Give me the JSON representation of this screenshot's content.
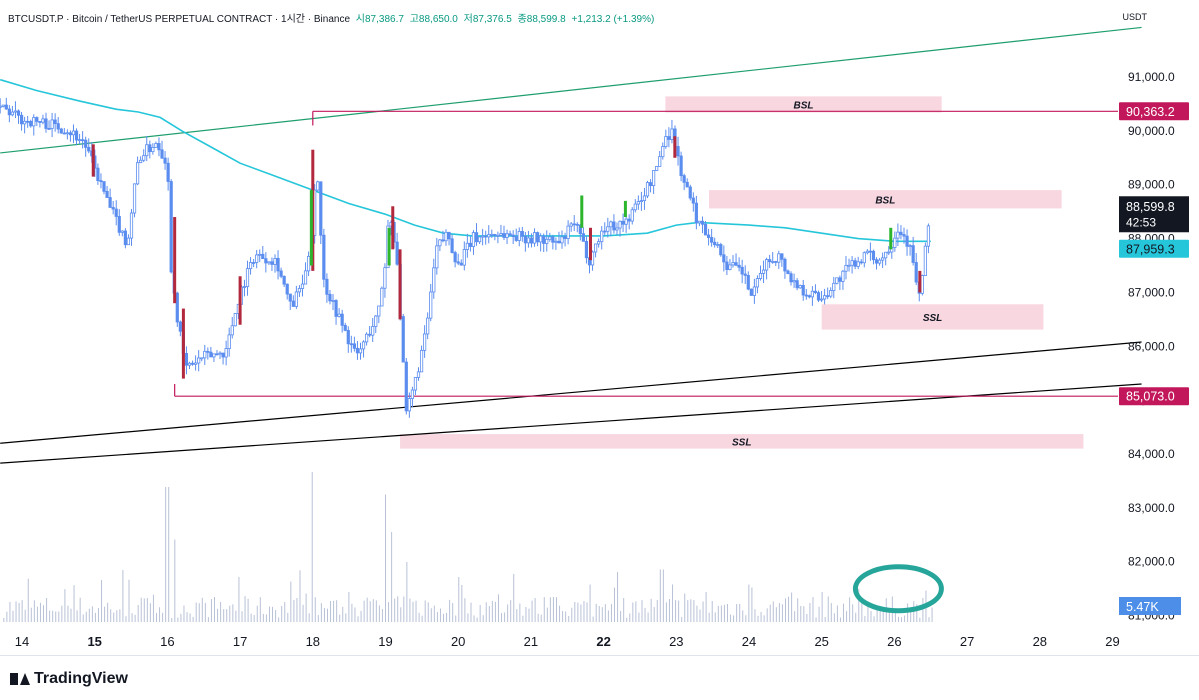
{
  "header": {
    "symbol": "BTCUSDT.P · Bitcoin / TetherUS PERPETUAL CONTRACT · 1시간 · Binance",
    "open": "시87,386.7",
    "high": "고88,650.0",
    "low": "저87,376.5",
    "close": "종88,599.8",
    "change": "+1,213.2 (+1.39%)"
  },
  "currency": "USDT",
  "brand": "TradingView",
  "colors": {
    "up": "#5b8def",
    "down": "#b2283c",
    "green": "#2db52d",
    "ma": "#26c6da",
    "trend_green": "#1e9e6e",
    "level": "#c2185b",
    "zone": "#f8d7e0",
    "volume": "#b8c1d6",
    "circle": "#26a69a"
  },
  "chart_data": {
    "type": "candlestick",
    "y_axis_ticks": [
      "91,000.0",
      "90,000.0",
      "89,000.0",
      "88,000.0",
      "87,000.0",
      "86,000.0",
      "85,000.0",
      "84,000.0",
      "83,000.0",
      "82,000.0"
    ],
    "ylim": [
      80900,
      91900
    ],
    "x_axis_ticks": [
      "14",
      "15",
      "16",
      "17",
      "18",
      "19",
      "20",
      "21",
      "22",
      "23",
      "24",
      "25",
      "26",
      "27",
      "28",
      "29"
    ],
    "bold_ticks": [
      "15",
      "22"
    ],
    "price_labels": {
      "level_high": "90,363.2",
      "current": "88,599.8",
      "countdown": "42:53",
      "ma": "87,959.3",
      "level_low": "85,073.0",
      "volume": "5.47K"
    },
    "zones": [
      {
        "label": "BSL",
        "day_start": 22.85,
        "day_end": 26.65,
        "top": 90640,
        "bottom": 90340
      },
      {
        "label": "BSL",
        "day_start": 23.45,
        "day_end": 28.3,
        "top": 88900,
        "bottom": 88560
      },
      {
        "label": "SSL",
        "day_start": 25.0,
        "day_end": 28.05,
        "top": 86780,
        "bottom": 86310
      },
      {
        "label": "SSL",
        "day_start": 19.2,
        "day_end": 28.6,
        "top": 84370,
        "bottom": 84100
      }
    ],
    "levels": [
      {
        "label": "90,363.2",
        "value": 90363.2,
        "day_start": 18.0
      },
      {
        "label": "85,073.0",
        "value": 85073.0,
        "day_start": 16.1
      }
    ],
    "trendlines": [
      {
        "color": "trend_green",
        "from": [
          13.7,
          89590
        ],
        "to": [
          29.4,
          91920
        ]
      },
      {
        "color": "black",
        "from": [
          13.7,
          84200
        ],
        "to": [
          29.4,
          86080
        ]
      },
      {
        "color": "black",
        "from": [
          13.7,
          83830
        ],
        "to": [
          29.4,
          85300
        ]
      }
    ],
    "price_path": [
      [
        13.7,
        90450
      ],
      [
        14.0,
        90200
      ],
      [
        14.3,
        90150
      ],
      [
        14.6,
        90050
      ],
      [
        14.85,
        89800
      ],
      [
        15.0,
        89300
      ],
      [
        15.2,
        88600
      ],
      [
        15.45,
        87900
      ],
      [
        15.6,
        89500
      ],
      [
        15.85,
        89800
      ],
      [
        16.0,
        89400
      ],
      [
        16.05,
        87500
      ],
      [
        16.15,
        86400
      ],
      [
        16.25,
        85600
      ],
      [
        16.5,
        85800
      ],
      [
        16.8,
        85900
      ],
      [
        17.0,
        87000
      ],
      [
        17.2,
        87700
      ],
      [
        17.5,
        87600
      ],
      [
        17.7,
        86700
      ],
      [
        17.9,
        87300
      ],
      [
        18.0,
        88300
      ],
      [
        18.05,
        89500
      ],
      [
        18.15,
        87200
      ],
      [
        18.4,
        86400
      ],
      [
        18.6,
        85800
      ],
      [
        18.9,
        86600
      ],
      [
        19.0,
        87600
      ],
      [
        19.05,
        88500
      ],
      [
        19.15,
        87800
      ],
      [
        19.22,
        86200
      ],
      [
        19.28,
        84700
      ],
      [
        19.4,
        85300
      ],
      [
        19.55,
        86200
      ],
      [
        19.7,
        87800
      ],
      [
        19.85,
        88100
      ],
      [
        20.0,
        87500
      ],
      [
        20.2,
        88000
      ],
      [
        20.5,
        88100
      ],
      [
        20.8,
        88050
      ],
      [
        21.1,
        88000
      ],
      [
        21.4,
        87900
      ],
      [
        21.6,
        88300
      ],
      [
        21.8,
        87600
      ],
      [
        22.0,
        88200
      ],
      [
        22.3,
        88300
      ],
      [
        22.5,
        88700
      ],
      [
        22.7,
        89200
      ],
      [
        22.85,
        89900
      ],
      [
        22.95,
        90000
      ],
      [
        23.05,
        89300
      ],
      [
        23.15,
        88900
      ],
      [
        23.3,
        88300
      ],
      [
        23.5,
        88000
      ],
      [
        23.7,
        87500
      ],
      [
        23.9,
        87400
      ],
      [
        24.05,
        86900
      ],
      [
        24.2,
        87500
      ],
      [
        24.4,
        87700
      ],
      [
        24.6,
        87200
      ],
      [
        24.8,
        87000
      ],
      [
        25.0,
        86900
      ],
      [
        25.2,
        87200
      ],
      [
        25.4,
        87500
      ],
      [
        25.6,
        87700
      ],
      [
        25.8,
        87600
      ],
      [
        25.95,
        87900
      ],
      [
        26.05,
        88200
      ],
      [
        26.2,
        87900
      ],
      [
        26.35,
        86900
      ],
      [
        26.5,
        88600
      ]
    ],
    "ma_path": [
      [
        13.7,
        90950
      ],
      [
        14.2,
        90750
      ],
      [
        14.8,
        90550
      ],
      [
        15.3,
        90400
      ],
      [
        15.6,
        90350
      ],
      [
        15.9,
        90250
      ],
      [
        16.2,
        90000
      ],
      [
        16.6,
        89700
      ],
      [
        17.0,
        89400
      ],
      [
        17.5,
        89150
      ],
      [
        18.0,
        88900
      ],
      [
        18.5,
        88650
      ],
      [
        19.0,
        88450
      ],
      [
        19.4,
        88250
      ],
      [
        19.8,
        88100
      ],
      [
        20.2,
        88050
      ],
      [
        21.0,
        88050
      ],
      [
        22.0,
        88050
      ],
      [
        22.6,
        88100
      ],
      [
        23.0,
        88250
      ],
      [
        23.3,
        88300
      ],
      [
        24.0,
        88250
      ],
      [
        24.5,
        88200
      ],
      [
        25.0,
        88100
      ],
      [
        25.5,
        88000
      ],
      [
        26.0,
        87950
      ],
      [
        26.5,
        87950
      ]
    ],
    "markers": [
      {
        "day": 14.98,
        "color": "down",
        "top": 89750,
        "bottom": 89150
      },
      {
        "day": 16.1,
        "color": "down",
        "top": 88400,
        "bottom": 86800
      },
      {
        "day": 16.22,
        "color": "down",
        "top": 86700,
        "bottom": 85400
      },
      {
        "day": 17.0,
        "color": "down",
        "top": 87300,
        "bottom": 86400
      },
      {
        "day": 18.0,
        "color": "down",
        "top": 89650,
        "bottom": 87400
      },
      {
        "day": 17.98,
        "color": "green",
        "top": 88900,
        "bottom": 87500
      },
      {
        "day": 19.05,
        "color": "green",
        "top": 88200,
        "bottom": 87500
      },
      {
        "day": 19.1,
        "color": "down",
        "top": 88600,
        "bottom": 87800
      },
      {
        "day": 19.2,
        "color": "down",
        "top": 87800,
        "bottom": 86500
      },
      {
        "day": 21.7,
        "color": "green",
        "top": 88800,
        "bottom": 88200
      },
      {
        "day": 21.82,
        "color": "down",
        "top": 88200,
        "bottom": 87600
      },
      {
        "day": 22.3,
        "color": "green",
        "top": 88700,
        "bottom": 88400
      },
      {
        "day": 22.98,
        "color": "down",
        "top": 89900,
        "bottom": 89500
      },
      {
        "day": 25.95,
        "color": "green",
        "top": 88200,
        "bottom": 87800
      },
      {
        "day": 26.35,
        "color": "down",
        "top": 87400,
        "bottom": 87000
      }
    ],
    "volume_spikes": [
      [
        15.1,
        0.28
      ],
      [
        16.0,
        0.9
      ],
      [
        16.1,
        0.55
      ],
      [
        18.0,
        1.0
      ],
      [
        17.0,
        0.3
      ],
      [
        18.5,
        0.2
      ],
      [
        19.0,
        0.85
      ],
      [
        19.1,
        0.6
      ],
      [
        19.3,
        0.4
      ],
      [
        20.0,
        0.3
      ],
      [
        21.8,
        0.25
      ],
      [
        22.8,
        0.35
      ],
      [
        22.95,
        0.25
      ],
      [
        23.4,
        0.2
      ],
      [
        24.0,
        0.25
      ],
      [
        25.0,
        0.2
      ]
    ],
    "annotation_circle": {
      "day": 26.0,
      "value_low": 81050,
      "value_high": 81650
    }
  }
}
